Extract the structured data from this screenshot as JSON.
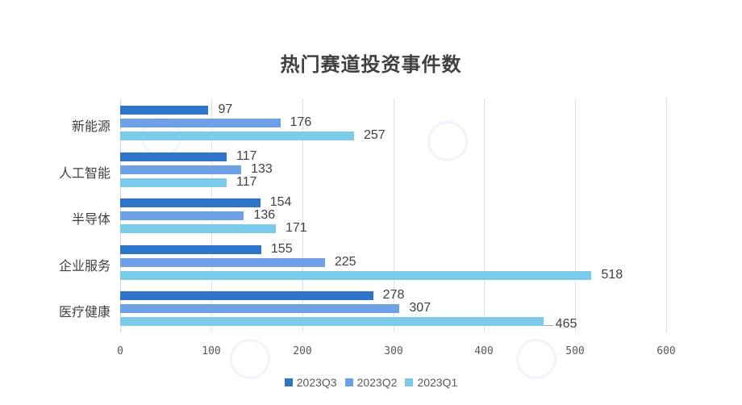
{
  "chart_data": {
    "type": "bar",
    "orientation": "horizontal",
    "title": "热门赛道投资事件数",
    "xlabel": "",
    "ylabel": "",
    "categories": [
      "新能源",
      "人工智能",
      "半导体",
      "企业服务",
      "医疗健康"
    ],
    "series": [
      {
        "name": "2023Q3",
        "color": "#2e75c9",
        "values": [
          97,
          117,
          154,
          155,
          278
        ]
      },
      {
        "name": "2023Q2",
        "color": "#6ea0e6",
        "values": [
          176,
          133,
          136,
          225,
          307
        ]
      },
      {
        "name": "2023Q1",
        "color": "#7ccbea",
        "values": [
          257,
          117,
          171,
          518,
          465
        ]
      }
    ],
    "xlim": [
      0,
      600
    ],
    "x_ticks": [
      "0",
      "100",
      "200",
      "300",
      "400",
      "500",
      "600"
    ],
    "grid": true,
    "legend_position": "bottom"
  }
}
